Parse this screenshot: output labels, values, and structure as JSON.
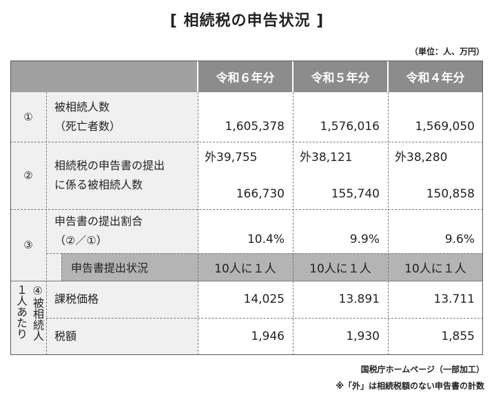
{
  "title": "[ 相続税の申告状況 ]",
  "unit": "（単位：人、万円）",
  "headers": [
    "令和６年分",
    "令和５年分",
    "令和４年分"
  ],
  "rows": {
    "r1": {
      "num": "①",
      "label1": "被相続人数",
      "label2": "（死亡者数）",
      "values": [
        "1,605,378",
        "1,576,016",
        "1,569,050"
      ]
    },
    "r2": {
      "num": "②",
      "label1": "相続税の申告書の提出",
      "label2": "に係る被相続人数",
      "outer": [
        "外39,755",
        "外38,121",
        "外38,280"
      ],
      "values": [
        "166,730",
        "155,740",
        "150,858"
      ]
    },
    "r3": {
      "num": "③",
      "label1": "申告書の提出割合",
      "label2": "（②／①）",
      "values": [
        "10.4%",
        "9.9%",
        "9.6%"
      ]
    },
    "r3sub": {
      "label": "申告書提出状況",
      "values": [
        "10人に１人",
        "10人に１人",
        "10人に１人"
      ]
    },
    "r4": {
      "num": "④",
      "side1": "１人あたり",
      "side2": "被相続人",
      "taxable_label": "課税価格",
      "taxable_values": [
        "14,025",
        "13.891",
        "13.711"
      ],
      "tax_label": "税額",
      "tax_values": [
        "1,946",
        "1,930",
        "1,855"
      ]
    }
  },
  "source": "国税庁ホームページ（一部加工）",
  "note": "※「外」は相続税額のない申告書の計数"
}
